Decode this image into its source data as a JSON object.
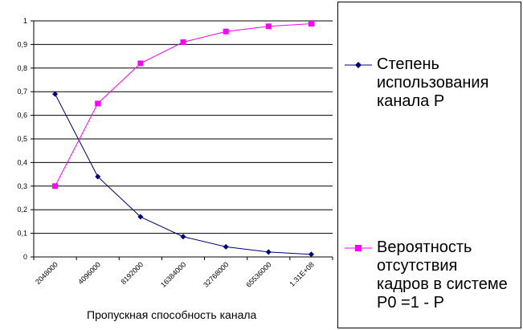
{
  "chart_data": {
    "type": "line",
    "categories": [
      "2048000",
      "4096000",
      "8192000",
      "16384000",
      "32768000",
      "65536000",
      "1.31E+08"
    ],
    "series": [
      {
        "name": "Степень использования канала P",
        "values": [
          0.69,
          0.34,
          0.17,
          0.086,
          0.043,
          0.021,
          0.011
        ],
        "color": "#000080",
        "marker": "diamond"
      },
      {
        "name": "Вероятность отсутствия кадров в системе P0 =1 - P",
        "values": [
          0.3,
          0.65,
          0.82,
          0.91,
          0.955,
          0.977,
          0.988
        ],
        "color": "#ff00ff",
        "marker": "square"
      }
    ],
    "title": "",
    "xlabel": "Пропускная способность канала",
    "ylabel": "",
    "ylim": [
      0,
      1
    ],
    "yticks": [
      "0",
      "0,1",
      "0,2",
      "0,3",
      "0,4",
      "0,5",
      "0,6",
      "0,7",
      "0,8",
      "0,9",
      "1"
    ],
    "grid": true,
    "legend_position": "right"
  },
  "legend": {
    "item1": "Степень\nиспользования\nканала P",
    "item2": "Вероятность\nотсутствия\nкадров в системе\nP0 =1 - P"
  }
}
